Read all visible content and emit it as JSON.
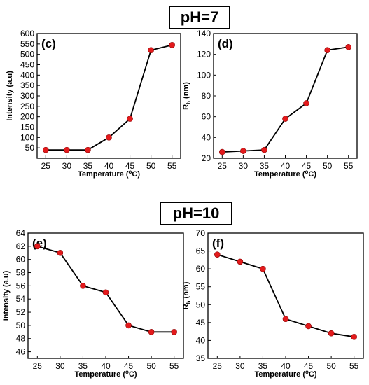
{
  "headers": {
    "top": "pH=7",
    "bottom": "pH=10"
  },
  "chart_data": [
    {
      "type": "line",
      "panel": "(c)",
      "xlabel": "Temperature (",
      "xlabel_sup": "o",
      "xlabel_tail": "C)",
      "ylabel": "Intensity (a.u)",
      "x": [
        25,
        30,
        35,
        40,
        45,
        50,
        55
      ],
      "values": [
        40,
        40,
        40,
        100,
        190,
        520,
        545
      ],
      "ylim": [
        0,
        600
      ],
      "yticks": [
        50,
        100,
        150,
        200,
        250,
        300,
        350,
        400,
        450,
        500,
        550,
        600
      ],
      "xticks": [
        25,
        30,
        35,
        40,
        45,
        50,
        55
      ],
      "line_color": "#000000",
      "marker_color": "#e31a1c"
    },
    {
      "type": "line",
      "panel": "(d)",
      "xlabel": "Temperature (",
      "xlabel_sup": "o",
      "xlabel_tail": "C)",
      "ylabel": "R",
      "ylabel_sub": "h",
      "ylabel_tail": " (nm)",
      "x": [
        25,
        30,
        35,
        40,
        45,
        50,
        55
      ],
      "values": [
        26,
        27,
        28,
        58,
        73,
        124,
        127
      ],
      "ylim": [
        20,
        140
      ],
      "yticks": [
        20,
        40,
        60,
        80,
        100,
        120,
        140
      ],
      "xticks": [
        25,
        30,
        35,
        40,
        45,
        50,
        55
      ],
      "line_color": "#000000",
      "marker_color": "#e31a1c"
    },
    {
      "type": "line",
      "panel": "(e)",
      "xlabel": "Temperature (",
      "xlabel_sup": "o",
      "xlabel_tail": "C)",
      "ylabel": "Intensity (a.u)",
      "x": [
        25,
        30,
        35,
        40,
        45,
        50,
        55
      ],
      "values": [
        62,
        61,
        56,
        55,
        50,
        49,
        49
      ],
      "ylim": [
        45,
        64
      ],
      "yticks": [
        46,
        48,
        50,
        52,
        54,
        56,
        58,
        60,
        62,
        64
      ],
      "xticks": [
        25,
        30,
        35,
        40,
        45,
        50,
        55
      ],
      "line_color": "#000000",
      "marker_color": "#e31a1c"
    },
    {
      "type": "line",
      "panel": "(f)",
      "xlabel": "Temperature (",
      "xlabel_sup": "o",
      "xlabel_tail": "C)",
      "ylabel": "R",
      "ylabel_sub": "h",
      "ylabel_tail": " (nm)",
      "x": [
        25,
        30,
        35,
        40,
        45,
        50,
        55
      ],
      "values": [
        64,
        62,
        60,
        46,
        44,
        42,
        41
      ],
      "ylim": [
        35,
        70
      ],
      "yticks": [
        35,
        40,
        45,
        50,
        55,
        60,
        65,
        70
      ],
      "xticks": [
        25,
        30,
        35,
        40,
        45,
        50,
        55
      ],
      "line_color": "#000000",
      "marker_color": "#e31a1c"
    }
  ]
}
